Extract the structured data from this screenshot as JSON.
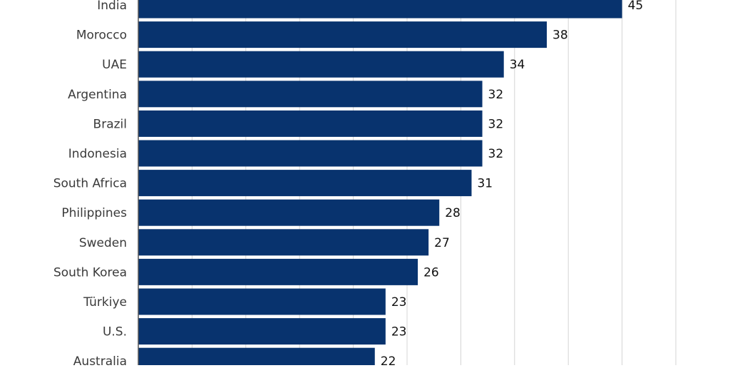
{
  "chart_data": {
    "type": "bar",
    "orientation": "horizontal",
    "categories": [
      "India",
      "Morocco",
      "UAE",
      "Argentina",
      "Brazil",
      "Indonesia",
      "South Africa",
      "Philippines",
      "Sweden",
      "South Korea",
      "Türkiye",
      "U.S.",
      "Australia"
    ],
    "values": [
      45,
      38,
      34,
      32,
      32,
      32,
      31,
      28,
      27,
      26,
      23,
      23,
      22
    ],
    "color": "#08336e",
    "xlim": [
      0,
      50
    ],
    "xticks": [
      0,
      5,
      10,
      15,
      20,
      25,
      30,
      35,
      40,
      45,
      50
    ],
    "grid": true
  }
}
